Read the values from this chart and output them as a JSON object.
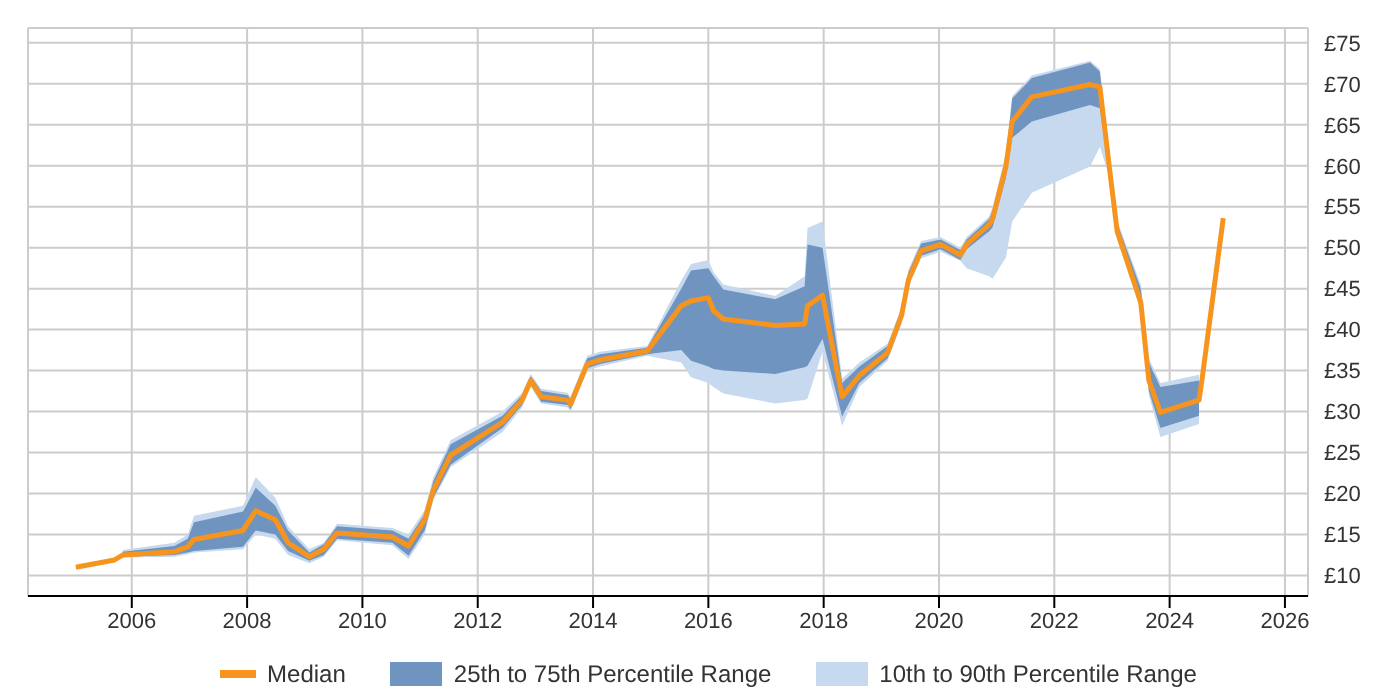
{
  "chart_data": {
    "type": "line",
    "legend": "bottom",
    "grid": true,
    "x": [
      2005.03,
      2005.7,
      2005.84,
      2006.74,
      2006.97,
      2007.08,
      2007.93,
      2008.15,
      2008.49,
      2008.71,
      2009.08,
      2009.33,
      2009.56,
      2010.52,
      2010.8,
      2011.08,
      2011.23,
      2011.53,
      2012.43,
      2012.77,
      2012.92,
      2013.1,
      2013.56,
      2013.61,
      2013.9,
      2014.12,
      2014.94,
      2015.53,
      2015.7,
      2016.0,
      2016.09,
      2016.26,
      2017.16,
      2017.67,
      2017.72,
      2017.98,
      2018.32,
      2018.62,
      2019.11,
      2019.35,
      2019.47,
      2019.69,
      2020.03,
      2020.37,
      2020.48,
      2020.87,
      2020.93,
      2021.16,
      2021.27,
      2021.61,
      2022.62,
      2022.79,
      2022.96,
      2023.09,
      2023.5,
      2023.64,
      2023.84,
      2024.51,
      2024.56,
      2024.93
    ],
    "xlim": [
      2004.2,
      2026.4
    ],
    "xticks": [
      2006,
      2008,
      2010,
      2012,
      2014,
      2016,
      2018,
      2020,
      2022,
      2024,
      2026
    ],
    "ylim": [
      7.5,
      76.8
    ],
    "yticks": [
      {
        "value": 10,
        "label": "£10"
      },
      {
        "value": 15,
        "label": "£15"
      },
      {
        "value": 20,
        "label": "£20"
      },
      {
        "value": 25,
        "label": "£25"
      },
      {
        "value": 30,
        "label": "£30"
      },
      {
        "value": 35,
        "label": "£35"
      },
      {
        "value": 40,
        "label": "£40"
      },
      {
        "value": 45,
        "label": "£45"
      },
      {
        "value": 50,
        "label": "£50"
      },
      {
        "value": 55,
        "label": "£55"
      },
      {
        "value": 60,
        "label": "£60"
      },
      {
        "value": 65,
        "label": "£65"
      },
      {
        "value": 70,
        "label": "£70"
      },
      {
        "value": 75,
        "label": "£75"
      }
    ],
    "series": [
      {
        "name": "10th to 90th Percentile Range",
        "color": "#c6d9ee",
        "values": [
          null,
          null,
          null,
          null,
          null,
          null,
          null,
          null,
          null,
          null,
          null,
          null,
          null,
          null,
          null,
          null,
          null,
          null,
          null,
          null,
          null,
          null,
          null,
          null,
          null,
          null,
          null,
          null,
          null,
          null,
          null,
          null,
          null,
          null,
          null,
          null,
          null,
          null,
          null,
          null,
          null,
          null,
          null,
          null,
          null,
          null,
          null,
          null,
          null,
          null,
          null,
          null,
          null,
          null,
          null,
          null,
          null,
          null,
          null,
          null
        ],
        "lower": [
          null,
          null,
          12.2,
          12.3,
          12.6,
          12.8,
          13.2,
          15.0,
          14.5,
          12.5,
          11.5,
          12.3,
          14.3,
          13.7,
          12.0,
          15.0,
          19.2,
          23.2,
          27.5,
          30.5,
          33.0,
          31.0,
          30.5,
          30.0,
          35.0,
          35.5,
          36.8,
          36.0,
          34.2,
          33.5,
          33.0,
          32.2,
          31.0,
          31.4,
          31.6,
          37.3,
          28.3,
          33.0,
          36.2,
          40.7,
          45.2,
          48.7,
          49.5,
          48.4,
          47.5,
          46.5,
          46.2,
          48.8,
          53.2,
          56.7,
          59.9,
          62.3,
          58.5,
          51.0,
          42.3,
          32.0,
          26.9,
          28.5,
          null,
          null
        ],
        "upper": [
          null,
          null,
          13.1,
          14.0,
          15.0,
          17.3,
          18.5,
          22.0,
          19.5,
          16.0,
          13.2,
          14.0,
          16.3,
          15.8,
          15.0,
          18.0,
          22.0,
          26.5,
          30.0,
          32.3,
          34.6,
          32.8,
          32.3,
          31.8,
          36.8,
          37.3,
          38.0,
          46.0,
          48.0,
          48.5,
          47.0,
          45.5,
          44.1,
          46.5,
          52.4,
          53.2,
          34.0,
          36.0,
          38.3,
          42.8,
          47.3,
          50.8,
          51.3,
          50.0,
          51.3,
          53.8,
          55.0,
          61.5,
          68.5,
          71.0,
          72.8,
          71.8,
          61.3,
          53.3,
          45.5,
          36.5,
          33.5,
          34.5,
          null,
          null
        ]
      },
      {
        "name": "25th to 75th Percentile Range",
        "color": "#7094c0",
        "values": [
          null,
          null,
          null,
          null,
          null,
          null,
          null,
          null,
          null,
          null,
          null,
          null,
          null,
          null,
          null,
          null,
          null,
          null,
          null,
          null,
          null,
          null,
          null,
          null,
          null,
          null,
          null,
          null,
          null,
          null,
          null,
          null,
          null,
          null,
          null,
          null,
          null,
          null,
          null,
          null,
          null,
          null,
          null,
          null,
          null,
          null,
          null,
          null,
          null,
          null,
          null,
          null,
          null,
          null,
          null,
          null,
          null,
          null,
          null,
          null
        ],
        "lower": [
          null,
          null,
          12.3,
          12.5,
          12.8,
          13.0,
          13.5,
          15.5,
          15.0,
          13.0,
          11.8,
          12.5,
          14.5,
          14.0,
          12.4,
          15.5,
          19.5,
          23.5,
          28.0,
          30.8,
          33.3,
          31.2,
          30.8,
          30.3,
          35.3,
          35.8,
          37.0,
          37.5,
          36.2,
          35.5,
          35.2,
          35.0,
          34.6,
          35.4,
          35.6,
          38.9,
          29.4,
          33.5,
          36.5,
          41.0,
          45.5,
          49.0,
          49.8,
          48.5,
          49.8,
          52.0,
          52.5,
          58.5,
          63.4,
          65.4,
          67.4,
          67.0,
          59.0,
          51.3,
          42.5,
          32.5,
          28.0,
          29.5,
          null,
          null
        ],
        "upper": [
          null,
          null,
          12.9,
          13.6,
          14.5,
          16.5,
          17.8,
          20.7,
          18.5,
          15.5,
          12.8,
          13.8,
          16.0,
          15.5,
          14.5,
          17.5,
          21.5,
          26.0,
          29.5,
          32.0,
          34.3,
          32.5,
          32.0,
          31.5,
          36.5,
          37.0,
          37.8,
          45.0,
          47.2,
          47.5,
          46.5,
          44.9,
          43.7,
          45.3,
          50.4,
          50.0,
          33.5,
          35.5,
          38.0,
          42.5,
          47.0,
          50.5,
          51.0,
          49.7,
          51.0,
          53.5,
          54.5,
          61.0,
          68.2,
          70.7,
          72.6,
          71.5,
          61.0,
          53.0,
          45.0,
          36.0,
          33.0,
          33.8,
          null,
          null
        ]
      },
      {
        "name": "Median",
        "color": "#f7941d",
        "values": [
          11.0,
          11.9,
          12.5,
          12.9,
          13.5,
          14.4,
          15.5,
          17.9,
          16.8,
          14.0,
          12.3,
          13.2,
          15.2,
          14.7,
          13.6,
          16.8,
          20.4,
          24.7,
          28.7,
          31.4,
          33.8,
          31.8,
          31.4,
          30.9,
          35.8,
          36.3,
          37.4,
          42.9,
          43.5,
          43.9,
          42.3,
          41.3,
          40.5,
          40.7,
          42.9,
          44.2,
          31.8,
          34.4,
          37.2,
          41.7,
          46.1,
          49.6,
          50.4,
          49.1,
          50.4,
          52.8,
          53.5,
          59.9,
          65.4,
          68.4,
          69.9,
          69.6,
          59.5,
          52.0,
          43.3,
          33.8,
          29.9,
          31.4,
          33.8,
          53.6
        ]
      }
    ]
  }
}
